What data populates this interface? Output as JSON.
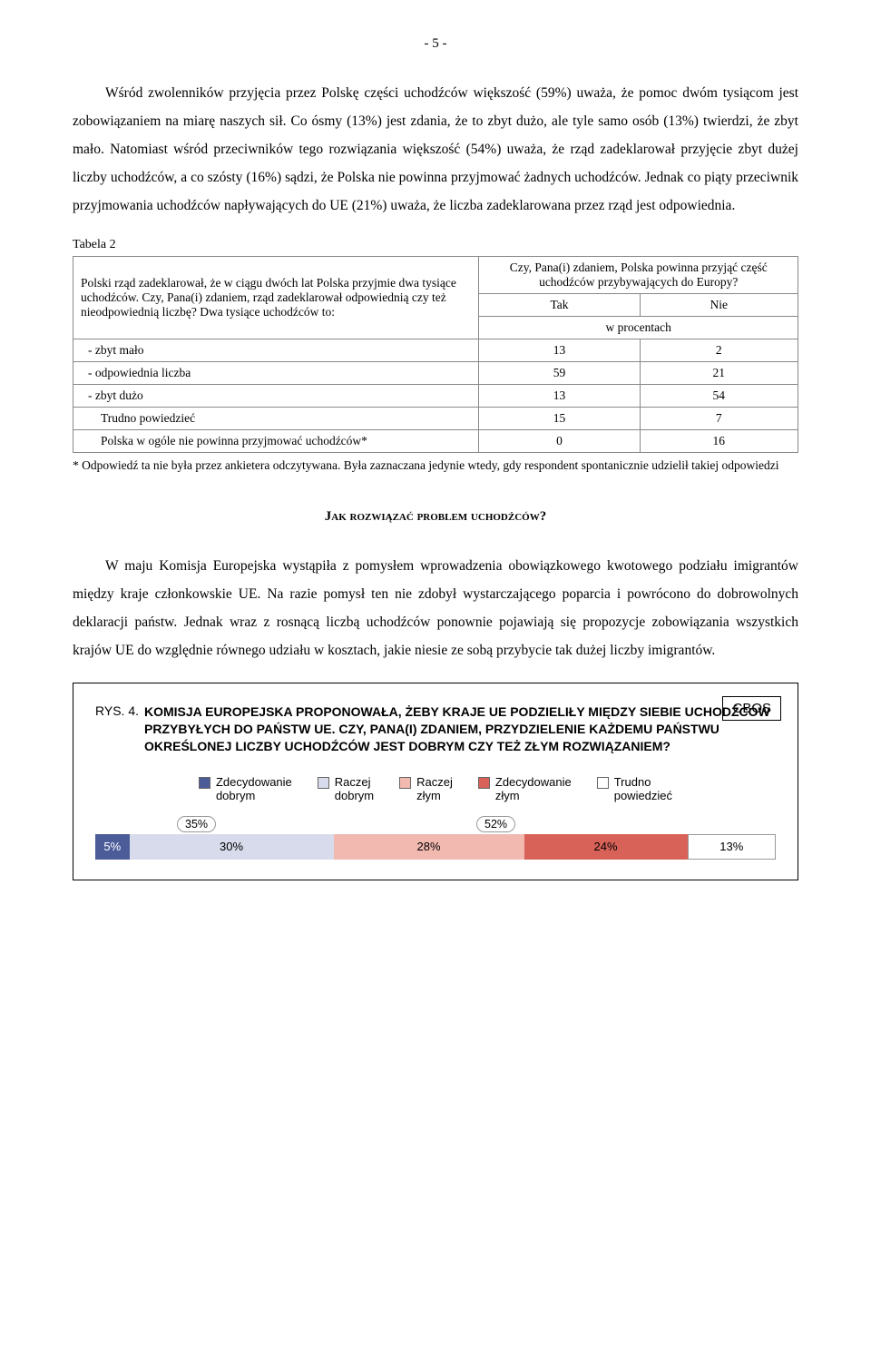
{
  "page_number": "- 5 -",
  "para1": "Wśród zwolenników przyjęcia przez Polskę części uchodźców większość (59%) uważa, że pomoc dwóm tysiącom jest zobowiązaniem na miarę naszych sił. Co ósmy (13%) jest zdania, że to zbyt dużo, ale tyle samo osób (13%) twierdzi, że zbyt mało. Natomiast wśród przeciwników tego rozwiązania większość (54%) uważa, że rząd zadeklarował przyjęcie zbyt dużej liczby uchodźców, a co szósty (16%) sądzi, że Polska nie powinna przyjmować żadnych uchodźców. Jednak co piąty przeciwnik przyjmowania uchodźców napływających do UE (21%) uważa, że liczba zadeklarowana przez rząd jest odpowiednia.",
  "table": {
    "label": "Tabela 2",
    "question_left": "Polski rząd zadeklarował, że w ciągu dwóch lat Polska przyjmie dwa tysiące uchodźców. Czy, Pana(i) zdaniem, rząd zadeklarował odpowiednią czy też nieodpowiednią liczbę? Dwa tysiące uchodźców to:",
    "question_right": "Czy, Pana(i) zdaniem, Polska powinna przyjąć część uchodźców przybywających do Europy?",
    "col_yes": "Tak",
    "col_no": "Nie",
    "unit": "w procentach",
    "rows": [
      {
        "label": "- zbyt mało",
        "yes": "13",
        "no": "2",
        "indent": 1
      },
      {
        "label": "- odpowiednia liczba",
        "yes": "59",
        "no": "21",
        "indent": 1
      },
      {
        "label": "- zbyt dużo",
        "yes": "13",
        "no": "54",
        "indent": 1
      },
      {
        "label": "Trudno powiedzieć",
        "yes": "15",
        "no": "7",
        "indent": 2
      },
      {
        "label": "Polska w ogóle nie powinna przyjmować uchodźców*",
        "yes": "0",
        "no": "16",
        "indent": 2
      }
    ],
    "footnote": "* Odpowiedź ta nie była przez ankietera odczytywana. Była zaznaczana jedynie wtedy, gdy respondent spontanicznie udzielił takiej odpowiedzi"
  },
  "heading": "Jak rozwiązać problem uchodźców?",
  "para2": "W maju Komisja Europejska wystąpiła z pomysłem wprowadzenia obowiązkowego kwotowego podziału imigrantów między kraje członkowskie UE. Na razie pomysł ten nie zdobył wystarczającego poparcia i powrócono do dobrowolnych deklaracji państw. Jednak wraz z rosnącą liczbą uchodźców ponownie pojawiają się propozycje zobowiązania wszystkich krajów UE do względnie równego udziału w kosztach, jakie niesie ze sobą przybycie tak dużej liczby imigrantów.",
  "chart": {
    "cbos": "CBOS",
    "rys_label": "RYS. 4.",
    "title": "KOMISJA EUROPEJSKA PROPONOWAŁA, ŻEBY KRAJE UE PODZIELIŁY MIĘDZY SIEBIE UCHODŹCÓW PRZYBYŁYCH DO PAŃSTW UE. CZY, PANA(I) ZDANIEM, PRZYDZIELENIE KAŻDEMU PAŃSTWU OKREŚLONEJ LICZBY UCHODŹCÓW JEST DOBRYM CZY TEŻ ZŁYM ROZWIĄZANIEM?",
    "legend": [
      {
        "label": "Zdecydowanie\ndobrym",
        "color": "#4b5c99"
      },
      {
        "label": "Raczej\ndobrym",
        "color": "#d8dbeb"
      },
      {
        "label": "Raczej\nzłym",
        "color": "#f2b9b1"
      },
      {
        "label": "Zdecydowanie\nzłym",
        "color": "#d86258"
      },
      {
        "label": "Trudno\npowiedzieć",
        "color": "#ffffff"
      }
    ],
    "segments": [
      {
        "value": 5,
        "label": "5%",
        "color": "#4b5c99",
        "text_color": "#ffffff"
      },
      {
        "value": 30,
        "label": "30%",
        "color": "#d8dbeb",
        "text_color": "#000000"
      },
      {
        "value": 28,
        "label": "28%",
        "color": "#f2b9b1",
        "text_color": "#000000"
      },
      {
        "value": 24,
        "label": "24%",
        "color": "#d86258",
        "text_color": "#000000"
      },
      {
        "value": 13,
        "label": "13%",
        "color": "#ffffff",
        "text_color": "#000000",
        "border": true
      }
    ],
    "callouts": [
      {
        "label": "35%",
        "left_pct": 12
      },
      {
        "label": "52%",
        "left_pct": 56
      }
    ]
  }
}
